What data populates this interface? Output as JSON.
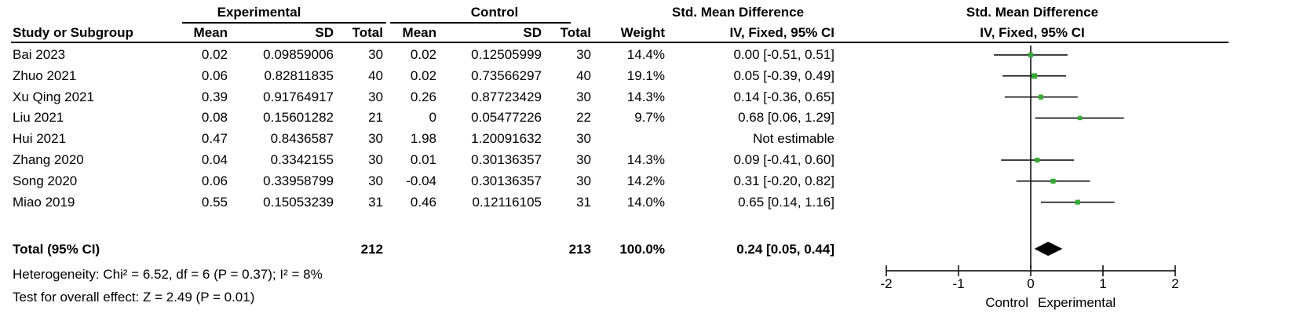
{
  "header": {
    "experimental_group": "Experimental",
    "control_group": "Control",
    "smd_title": "Std. Mean Difference",
    "smd_method": "IV, Fixed, 95% CI",
    "plot_title": "Std. Mean Difference",
    "plot_method": "IV, Fixed, 95% CI",
    "col_study": "Study or Subgroup",
    "col_exp_mean": "Mean",
    "col_exp_sd": "SD",
    "col_exp_total": "Total",
    "col_ctl_mean": "Mean",
    "col_ctl_sd": "SD",
    "col_ctl_total": "Total",
    "col_weight": "Weight"
  },
  "rows": [
    {
      "study": "Bai 2023",
      "exp_mean": "0.02",
      "exp_sd": "0.09859006",
      "exp_total": "30",
      "ctl_mean": "0.02",
      "ctl_sd": "0.12505999",
      "ctl_total": "30",
      "weight": "14.4%",
      "ci_text": "0.00 [-0.51, 0.51]"
    },
    {
      "study": "Zhuo 2021",
      "exp_mean": "0.06",
      "exp_sd": "0.82811835",
      "exp_total": "40",
      "ctl_mean": "0.02",
      "ctl_sd": "0.73566297",
      "ctl_total": "40",
      "weight": "19.1%",
      "ci_text": "0.05 [-0.39, 0.49]"
    },
    {
      "study": "Xu Qing 2021",
      "exp_mean": "0.39",
      "exp_sd": "0.91764917",
      "exp_total": "30",
      "ctl_mean": "0.26",
      "ctl_sd": "0.87723429",
      "ctl_total": "30",
      "weight": "14.3%",
      "ci_text": "0.14 [-0.36, 0.65]"
    },
    {
      "study": "Liu 2021",
      "exp_mean": "0.08",
      "exp_sd": "0.15601282",
      "exp_total": "21",
      "ctl_mean": "0",
      "ctl_sd": "0.05477226",
      "ctl_total": "22",
      "weight": "9.7%",
      "ci_text": "0.68 [0.06, 1.29]"
    },
    {
      "study": "Hui 2021",
      "exp_mean": "0.47",
      "exp_sd": "0.8436587",
      "exp_total": "30",
      "ctl_mean": "1.98",
      "ctl_sd": "1.20091632",
      "ctl_total": "30",
      "weight": "",
      "ci_text": "Not estimable"
    },
    {
      "study": "Zhang 2020",
      "exp_mean": "0.04",
      "exp_sd": "0.3342155",
      "exp_total": "30",
      "ctl_mean": "0.01",
      "ctl_sd": "0.30136357",
      "ctl_total": "30",
      "weight": "14.3%",
      "ci_text": "0.09 [-0.41, 0.60]"
    },
    {
      "study": "Song 2020",
      "exp_mean": "0.06",
      "exp_sd": "0.33958799",
      "exp_total": "30",
      "ctl_mean": "-0.04",
      "ctl_sd": "0.30136357",
      "ctl_total": "30",
      "weight": "14.2%",
      "ci_text": "0.31 [-0.20, 0.82]"
    },
    {
      "study": "Miao 2019",
      "exp_mean": "0.55",
      "exp_sd": "0.15053239",
      "exp_total": "31",
      "ctl_mean": "0.46",
      "ctl_sd": "0.12116105",
      "ctl_total": "31",
      "weight": "14.0%",
      "ci_text": "0.65 [0.14, 1.16]"
    }
  ],
  "total": {
    "label": "Total (95% CI)",
    "exp_total": "212",
    "ctl_total": "213",
    "weight": "100.0%",
    "ci_text": "0.24 [0.05, 0.44]"
  },
  "heterogeneity": "Heterogeneity: Chi² = 6.52, df = 6 (P = 0.37); I² = 8%",
  "overall_effect": "Test for overall effect: Z = 2.49 (P = 0.01)",
  "chart_data": {
    "type": "scatter",
    "subtype": "forest",
    "xlim": [
      -2,
      2
    ],
    "xticks": [
      -2,
      -1,
      0,
      1,
      2
    ],
    "xtick_labels": [
      "-2",
      "-1",
      "0",
      "1",
      "2"
    ],
    "favours_left": "Control",
    "favours_right": "Experimental",
    "point_color": "#33aa33",
    "studies": [
      {
        "smd": 0.0,
        "lower": -0.51,
        "upper": 0.51,
        "weight": 14.4
      },
      {
        "smd": 0.05,
        "lower": -0.39,
        "upper": 0.49,
        "weight": 19.1
      },
      {
        "smd": 0.14,
        "lower": -0.36,
        "upper": 0.65,
        "weight": 14.3
      },
      {
        "smd": 0.68,
        "lower": 0.06,
        "upper": 1.29,
        "weight": 9.7
      },
      null,
      {
        "smd": 0.09,
        "lower": -0.41,
        "upper": 0.6,
        "weight": 14.3
      },
      {
        "smd": 0.31,
        "lower": -0.2,
        "upper": 0.82,
        "weight": 14.2
      },
      {
        "smd": 0.65,
        "lower": 0.14,
        "upper": 1.16,
        "weight": 14.0
      }
    ],
    "pooled": {
      "smd": 0.24,
      "lower": 0.05,
      "upper": 0.44
    }
  }
}
